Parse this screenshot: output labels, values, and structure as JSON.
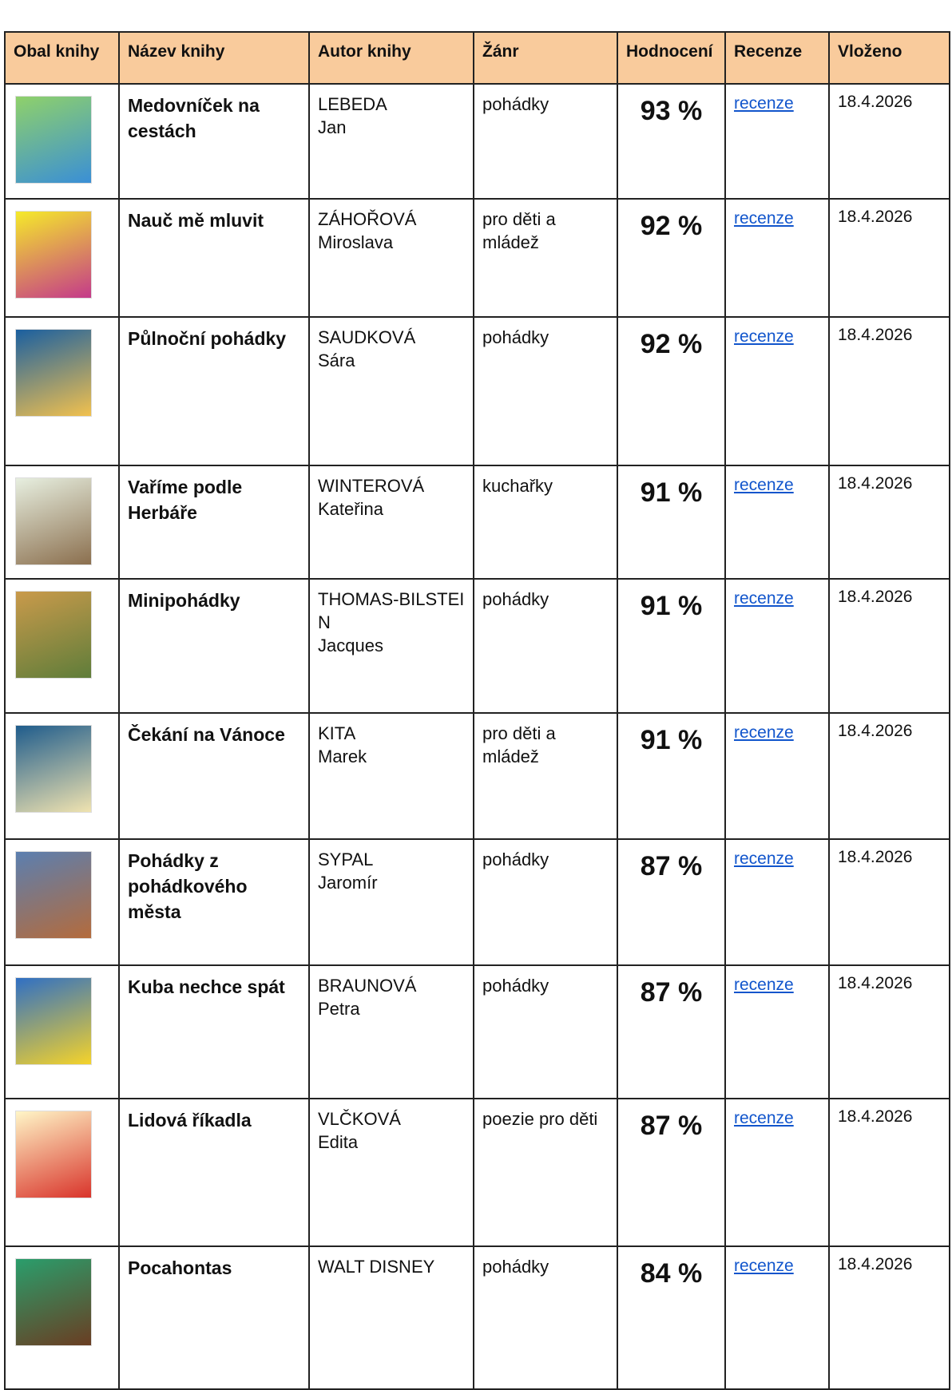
{
  "table": {
    "header": [
      "Obal knihy",
      "Název knihy",
      "Autor knihy",
      "Žánr",
      "Hodnocení",
      "Recenze",
      "Vloženo"
    ],
    "rows": [
      {
        "title": "Medovníček na cestách",
        "surname": "LEBEDA",
        "first": "Jan",
        "genre": "pohádky",
        "rating": "93 %",
        "review": "recenze",
        "date": "18.4.2026"
      },
      {
        "title": "Nauč mě mluvit",
        "surname": "ZÁHOŘOVÁ",
        "first": "Miroslava",
        "genre": "pro děti a mládež",
        "rating": "92 %",
        "review": "recenze",
        "date": "18.4.2026"
      },
      {
        "title": "Půlnoční pohádky",
        "surname": "SAUDKOVÁ",
        "first": "Sára",
        "genre": "pohádky",
        "rating": "92 %",
        "review": "recenze",
        "date": "18.4.2026"
      },
      {
        "title": "Vaříme podle Herbáře",
        "surname": "WINTEROVÁ",
        "first": "Kateřina",
        "genre": "kuchařky",
        "rating": "91 %",
        "review": "recenze",
        "date": "18.4.2026"
      },
      {
        "title": "Minipohádky",
        "surname": "THOMAS-BILSTEIN",
        "first": "Jacques",
        "genre": "pohádky",
        "rating": "91 %",
        "review": "recenze",
        "date": "18.4.2026"
      },
      {
        "title": "Čekání na Vánoce",
        "surname": "KITA",
        "first": "Marek",
        "genre": "pro děti a mládež",
        "rating": "91 %",
        "review": "recenze",
        "date": "18.4.2026"
      },
      {
        "title": "Pohádky z pohádkového města",
        "surname": "SYPAL",
        "first": "Jaromír",
        "genre": "pohádky",
        "rating": "87 %",
        "review": "recenze",
        "date": "18.4.2026"
      },
      {
        "title": "Kuba nechce spát",
        "surname": "BRAUNOVÁ",
        "first": "Petra",
        "genre": "pohádky",
        "rating": "87 %",
        "review": "recenze",
        "date": "18.4.2026"
      },
      {
        "title": "Lidová říkadla",
        "surname": "VLČKOVÁ",
        "first": "Edita",
        "genre": "poezie pro děti",
        "rating": "87 %",
        "review": "recenze",
        "date": "18.4.2026"
      },
      {
        "title": "Pocahontas",
        "surname": "WALT DISNEY",
        "first": null,
        "genre": "pohádky",
        "rating": "84 %",
        "review": "recenze",
        "date": "18.4.2026"
      }
    ]
  }
}
